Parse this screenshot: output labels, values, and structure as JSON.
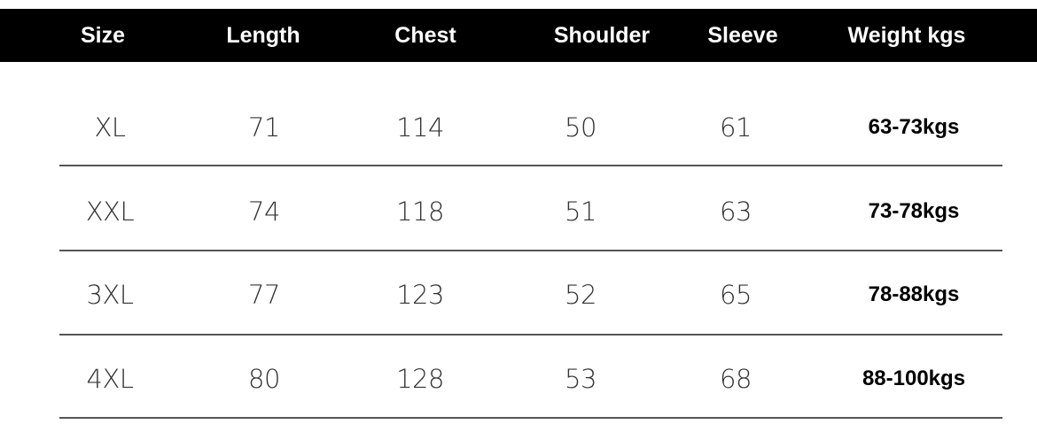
{
  "table": {
    "header": [
      "Size",
      "Length",
      "Chest",
      "Shoulder",
      "Sleeve",
      "Weight kgs"
    ],
    "rows": [
      [
        "XL",
        71,
        114,
        50,
        61,
        "63-73kgs"
      ],
      [
        "XXL",
        74,
        118,
        51,
        63,
        "73-78kgs"
      ],
      [
        "3XL",
        77,
        123,
        52,
        65,
        "78-88kgs"
      ],
      [
        "4XL",
        80,
        128,
        53,
        68,
        "88-100kgs"
      ]
    ]
  }
}
